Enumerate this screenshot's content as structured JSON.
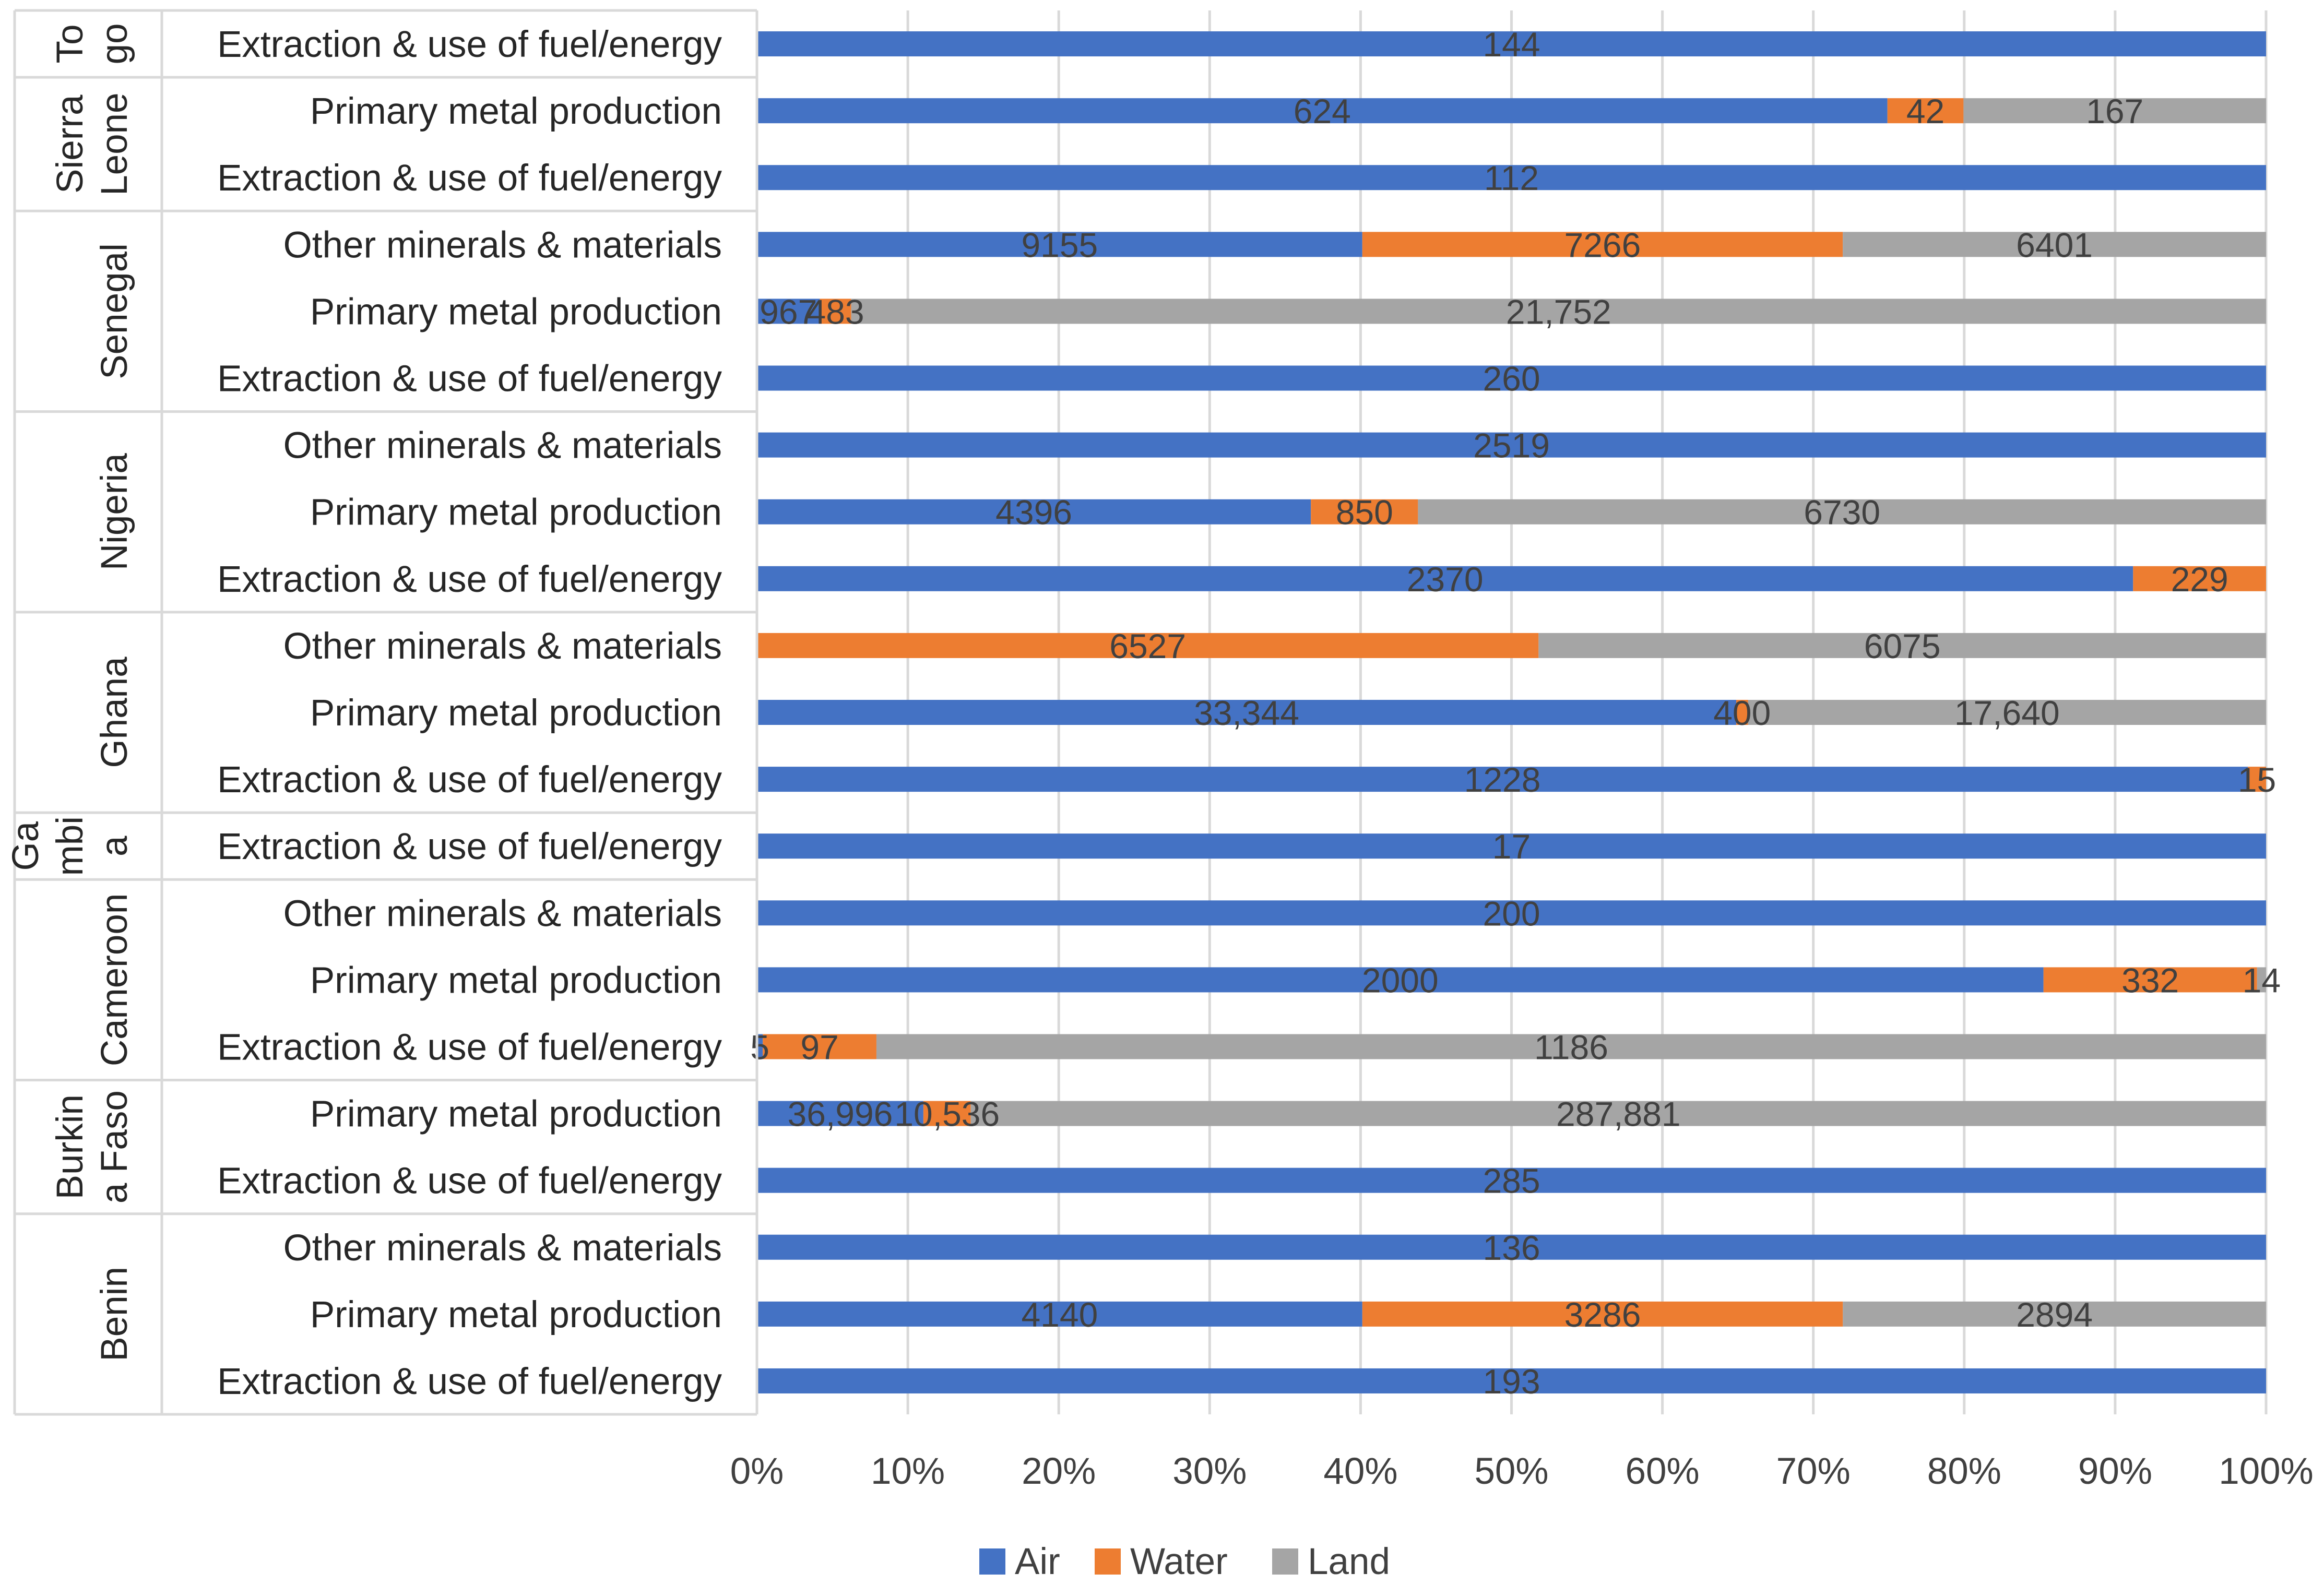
{
  "chart_data": {
    "type": "bar",
    "orientation": "horizontal",
    "stacked": "percent",
    "title": "",
    "xlabel": "",
    "ylabel": "",
    "xlim": [
      0,
      100
    ],
    "x_ticks": [
      "0%",
      "10%",
      "20%",
      "30%",
      "40%",
      "50%",
      "60%",
      "70%",
      "80%",
      "90%",
      "100%"
    ],
    "grid": true,
    "legend_position": "bottom",
    "colors": {
      "Air": "#4472C4",
      "Water": "#ED7D31",
      "Land": "#A5A5A5"
    },
    "series_names": [
      "Air",
      "Water",
      "Land"
    ],
    "groups": [
      {
        "name": "Benin",
        "name_lines": [
          "Benin"
        ],
        "rows": [
          {
            "category": "Extraction & use of fuel/energy",
            "values": [
              193,
              0,
              0
            ],
            "labels": [
              "193",
              "",
              ""
            ]
          },
          {
            "category": "Primary metal production",
            "values": [
              4140,
              3286,
              2894
            ],
            "labels": [
              "4140",
              "3286",
              "2894"
            ]
          },
          {
            "category": "Other minerals & materials",
            "values": [
              136,
              0,
              0
            ],
            "labels": [
              "136",
              "",
              ""
            ]
          }
        ]
      },
      {
        "name": "Burkina Faso",
        "name_lines": [
          "Burkin",
          "a Faso"
        ],
        "rows": [
          {
            "category": "Extraction & use of fuel/energy",
            "values": [
              285,
              0,
              0
            ],
            "labels": [
              "285",
              "",
              ""
            ]
          },
          {
            "category": "Primary metal production",
            "values": [
              36996,
              10536,
              287881
            ],
            "labels": [
              "36,996",
              "10,536",
              "287,881"
            ]
          }
        ]
      },
      {
        "name": "Cameroon",
        "name_lines": [
          "Cameroon"
        ],
        "rows": [
          {
            "category": "Extraction & use of fuel/energy",
            "values": [
              5,
              97,
              1186
            ],
            "labels": [
              "5",
              "97",
              "1186"
            ]
          },
          {
            "category": "Primary metal production",
            "values": [
              2000,
              332,
              14
            ],
            "labels": [
              "2000",
              "332",
              "14"
            ]
          },
          {
            "category": "Other minerals & materials",
            "values": [
              200,
              0,
              0
            ],
            "labels": [
              "200",
              "",
              ""
            ]
          }
        ]
      },
      {
        "name": "Gambia",
        "name_lines": [
          "Ga",
          "mbi",
          "a"
        ],
        "rows": [
          {
            "category": "Extraction & use of fuel/energy",
            "values": [
              17,
              0,
              0
            ],
            "labels": [
              "17",
              "",
              ""
            ]
          }
        ]
      },
      {
        "name": "Ghana",
        "name_lines": [
          "Ghana"
        ],
        "rows": [
          {
            "category": "Extraction & use of fuel/energy",
            "values": [
              1228,
              15,
              0
            ],
            "labels": [
              "1228",
              "15",
              ""
            ]
          },
          {
            "category": "Primary metal production",
            "values": [
              33344,
              400,
              17640
            ],
            "labels": [
              "33,344",
              "400",
              "17,640"
            ]
          },
          {
            "category": "Other minerals & materials",
            "values": [
              0,
              6527,
              6075
            ],
            "labels": [
              "",
              "6527",
              "6075"
            ]
          }
        ]
      },
      {
        "name": "Nigeria",
        "name_lines": [
          "Nigeria"
        ],
        "rows": [
          {
            "category": "Extraction & use of fuel/energy",
            "values": [
              2370,
              229,
              0
            ],
            "labels": [
              "2370",
              "229",
              ""
            ]
          },
          {
            "category": "Primary metal production",
            "values": [
              4396,
              850,
              6730
            ],
            "labels": [
              "4396",
              "850",
              "6730"
            ]
          },
          {
            "category": "Other minerals & materials",
            "values": [
              2519,
              0,
              0
            ],
            "labels": [
              "2519",
              "",
              ""
            ]
          }
        ]
      },
      {
        "name": "Senegal",
        "name_lines": [
          "Senegal"
        ],
        "rows": [
          {
            "category": "Extraction & use of fuel/energy",
            "values": [
              260,
              0,
              0
            ],
            "labels": [
              "260",
              "",
              ""
            ]
          },
          {
            "category": "Primary metal production",
            "values": [
              967,
              483,
              21752
            ],
            "labels": [
              "967",
              "483",
              "21,752"
            ]
          },
          {
            "category": "Other minerals & materials",
            "values": [
              9155,
              7266,
              6401
            ],
            "labels": [
              "9155",
              "7266",
              "6401"
            ]
          }
        ]
      },
      {
        "name": "Sierra Leone",
        "name_lines": [
          "Sierra",
          "Leone"
        ],
        "rows": [
          {
            "category": "Extraction & use of fuel/energy",
            "values": [
              112,
              0,
              0
            ],
            "labels": [
              "112",
              "",
              ""
            ]
          },
          {
            "category": "Primary metal production",
            "values": [
              624,
              42,
              167
            ],
            "labels": [
              "624",
              "42",
              "167"
            ]
          }
        ]
      },
      {
        "name": "Togo",
        "name_lines": [
          "To",
          "go"
        ],
        "rows": [
          {
            "category": "Extraction & use of fuel/energy",
            "values": [
              144,
              0,
              0
            ],
            "labels": [
              "144",
              "",
              ""
            ]
          }
        ]
      }
    ]
  }
}
